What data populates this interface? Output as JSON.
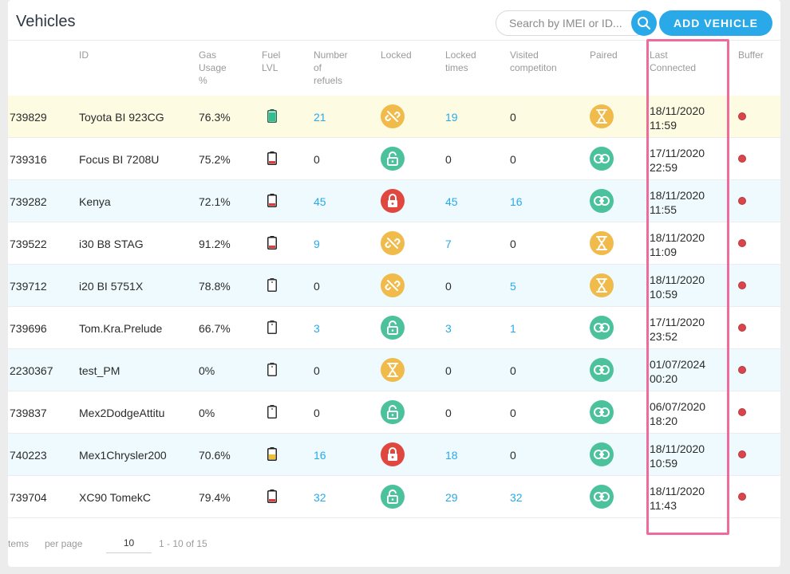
{
  "title": "Vehicles",
  "search": {
    "placeholder": "Search by IMEI or ID..."
  },
  "add_button": "ADD VEHICLE",
  "columns": {
    "id": "ID",
    "gas": [
      "Gas",
      "Usage",
      "%"
    ],
    "fuel": [
      "Fuel",
      "LVL"
    ],
    "refuels": [
      "Number",
      "of",
      "refuels"
    ],
    "locked": "Locked",
    "locked_times": [
      "Locked",
      "times"
    ],
    "visited": [
      "Visited",
      "competiton"
    ],
    "paired": "Paired",
    "last_connected": [
      "Last",
      "Connected"
    ],
    "buffer": "Buffer"
  },
  "rows": [
    {
      "imei": "739829",
      "id": "Toyota BI 923CG",
      "gas": "76.3%",
      "fuel": "green",
      "fuel_level": 0.85,
      "refuels": "21",
      "lock": "unlinked-yellow",
      "locked_times": "19",
      "visited": "0",
      "paired": "hourglass",
      "date": "18/11/2020",
      "time": "11:59"
    },
    {
      "imei": "739316",
      "id": "Focus BI 7208U",
      "gas": "75.2%",
      "fuel": "red",
      "fuel_level": 0.2,
      "refuels": "0",
      "lock": "unlocked-green",
      "locked_times": "0",
      "visited": "0",
      "paired": "link",
      "date": "17/11/2020",
      "time": "22:59"
    },
    {
      "imei": "739282",
      "id": "Kenya",
      "gas": "72.1%",
      "fuel": "red",
      "fuel_level": 0.2,
      "refuels": "45",
      "lock": "locked-red",
      "locked_times": "45",
      "visited": "16",
      "paired": "link",
      "date": "18/11/2020",
      "time": "11:55"
    },
    {
      "imei": "739522",
      "id": "i30 B8 STAG",
      "gas": "91.2%",
      "fuel": "red",
      "fuel_level": 0.2,
      "refuels": "9",
      "lock": "unlinked-yellow",
      "locked_times": "7",
      "visited": "0",
      "paired": "hourglass",
      "date": "18/11/2020",
      "time": "11:09"
    },
    {
      "imei": "739712",
      "id": "i20 BI 5751X",
      "gas": "78.8%",
      "fuel": "none",
      "fuel_level": 0,
      "refuels": "0",
      "lock": "unlinked-yellow",
      "locked_times": "0",
      "visited": "5",
      "paired": "hourglass",
      "date": "18/11/2020",
      "time": "10:59"
    },
    {
      "imei": "739696",
      "id": "Tom.Kra.Prelude",
      "gas": "66.7%",
      "fuel": "none",
      "fuel_level": 0,
      "refuels": "3",
      "lock": "unlocked-green",
      "locked_times": "3",
      "visited": "1",
      "paired": "link",
      "date": "17/11/2020",
      "time": "23:52"
    },
    {
      "imei": "2230367",
      "id": "test_PM",
      "gas": "0%",
      "fuel": "none",
      "fuel_level": 0,
      "refuels": "0",
      "lock": "hourglass-yellow",
      "locked_times": "0",
      "visited": "0",
      "paired": "link",
      "date": "01/07/2024",
      "time": "00:20"
    },
    {
      "imei": "739837",
      "id": "Mex2DodgeAttitu",
      "gas": "0%",
      "fuel": "none",
      "fuel_level": 0,
      "refuels": "0",
      "lock": "unlocked-green",
      "locked_times": "0",
      "visited": "0",
      "paired": "link",
      "date": "06/07/2020",
      "time": "18:20"
    },
    {
      "imei": "740223",
      "id": "Mex1Chrysler200",
      "gas": "70.6%",
      "fuel": "yellow",
      "fuel_level": 0.45,
      "refuels": "16",
      "lock": "locked-red",
      "locked_times": "18",
      "visited": "0",
      "paired": "link",
      "date": "18/11/2020",
      "time": "10:59"
    },
    {
      "imei": "739704",
      "id": "XC90 TomekC",
      "gas": "79.4%",
      "fuel": "red",
      "fuel_level": 0.2,
      "refuels": "32",
      "lock": "unlocked-green",
      "locked_times": "29",
      "visited": "32",
      "paired": "link",
      "date": "18/11/2020",
      "time": "11:43"
    }
  ],
  "footer": {
    "items_label": "tems",
    "per_page_label": "per page",
    "per_page_value": "10",
    "range": "1 - 10 of 15"
  }
}
